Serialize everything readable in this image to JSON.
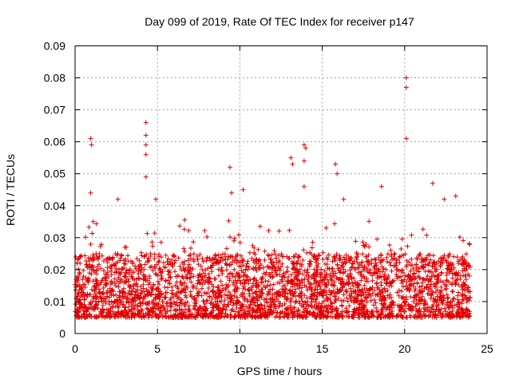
{
  "chart_data": {
    "type": "scatter",
    "title": "Day 099 of 2019, Rate Of TEC Index for receiver p147",
    "xlabel": "GPS time / hours",
    "ylabel": "ROTI / TECUs",
    "xlim": [
      0,
      25
    ],
    "ylim": [
      0,
      0.09
    ],
    "xticks": [
      0,
      5,
      10,
      15,
      20,
      25
    ],
    "yticks": [
      0,
      0.01,
      0.02,
      0.03,
      0.04,
      0.05,
      0.06,
      0.07,
      0.08,
      0.09
    ],
    "xtick_labels": [
      "0",
      "5",
      "10",
      "15",
      "20",
      "25"
    ],
    "ytick_labels": [
      "0",
      "0.01",
      "0.02",
      "0.03",
      "0.04",
      "0.05",
      "0.06",
      "0.07",
      "0.08",
      "0.09"
    ],
    "grid": true,
    "marker": "+",
    "color": "#e00000",
    "series": [
      {
        "name": "p147",
        "x_range": [
          0,
          24
        ],
        "typical_range": [
          0.005,
          0.025
        ],
        "spikes": [
          {
            "x": 0.95,
            "y": 0.061
          },
          {
            "x": 1.0,
            "y": 0.059
          },
          {
            "x": 0.95,
            "y": 0.044
          },
          {
            "x": 1.1,
            "y": 0.035
          },
          {
            "x": 2.6,
            "y": 0.042
          },
          {
            "x": 4.3,
            "y": 0.066
          },
          {
            "x": 4.3,
            "y": 0.062
          },
          {
            "x": 4.3,
            "y": 0.059
          },
          {
            "x": 4.3,
            "y": 0.056
          },
          {
            "x": 4.3,
            "y": 0.049
          },
          {
            "x": 4.9,
            "y": 0.042
          },
          {
            "x": 9.4,
            "y": 0.052
          },
          {
            "x": 9.5,
            "y": 0.044
          },
          {
            "x": 10.2,
            "y": 0.045
          },
          {
            "x": 13.1,
            "y": 0.055
          },
          {
            "x": 13.2,
            "y": 0.053
          },
          {
            "x": 13.9,
            "y": 0.059
          },
          {
            "x": 14.0,
            "y": 0.058
          },
          {
            "x": 13.9,
            "y": 0.054
          },
          {
            "x": 13.9,
            "y": 0.046
          },
          {
            "x": 15.8,
            "y": 0.053
          },
          {
            "x": 15.9,
            "y": 0.05
          },
          {
            "x": 16.3,
            "y": 0.042
          },
          {
            "x": 18.6,
            "y": 0.046
          },
          {
            "x": 20.1,
            "y": 0.08
          },
          {
            "x": 20.1,
            "y": 0.077
          },
          {
            "x": 20.1,
            "y": 0.061
          },
          {
            "x": 21.7,
            "y": 0.047
          },
          {
            "x": 22.4,
            "y": 0.042
          },
          {
            "x": 23.1,
            "y": 0.043
          }
        ]
      }
    ]
  }
}
